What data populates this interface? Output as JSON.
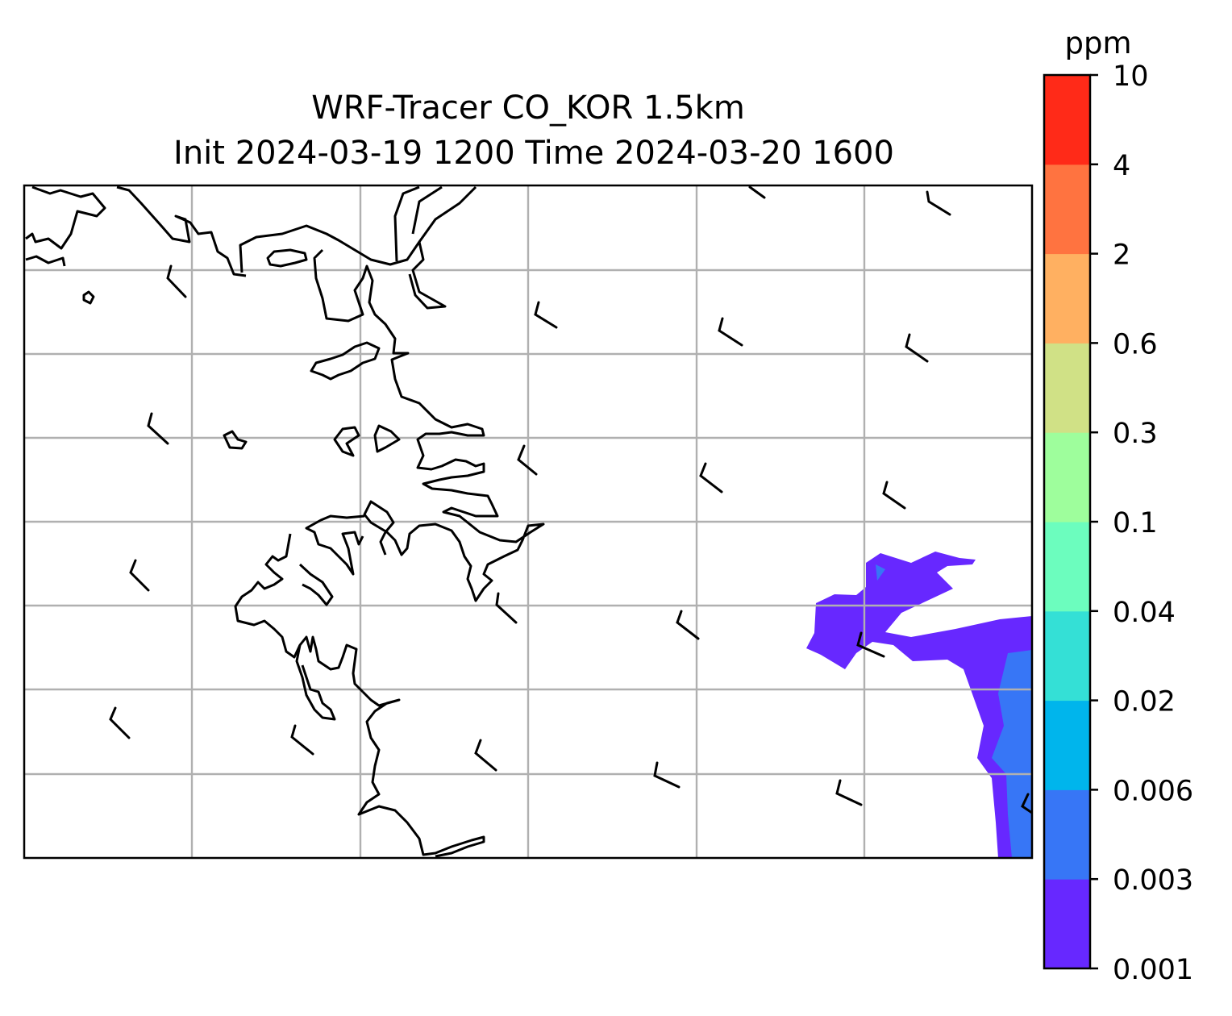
{
  "title": {
    "line1": "WRF-Tracer CO_KOR 1.5km",
    "line2": "Init 2024-03-19 1200 Time 2024-03-20 1600"
  },
  "colorbar": {
    "unit": "ppm",
    "levels": [
      "0.001",
      "0.003",
      "0.006",
      "0.02",
      "0.04",
      "0.1",
      "0.3",
      "0.6",
      "2",
      "4",
      "10"
    ],
    "colors": [
      "#6728ff",
      "#3776f6",
      "#00b5ec",
      "#34e0d6",
      "#6cfdbe",
      "#9efe9c",
      "#d0e186",
      "#ffb061",
      "#ff7340",
      "#ff2a18"
    ]
  },
  "map": {
    "gridline_color": "#b0b0b0",
    "coastline_color": "#000000",
    "plume_low_color": "#6728ff",
    "plume_mid_color": "#3776f6"
  }
}
